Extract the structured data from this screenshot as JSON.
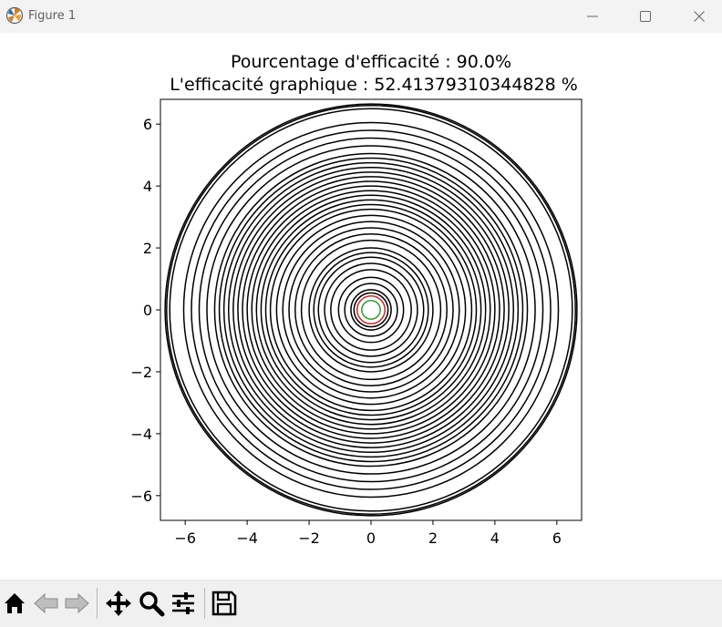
{
  "window": {
    "title": "Figure 1",
    "icon": "matplotlib-figure-icon",
    "controls": [
      "minimize-icon",
      "maximize-icon",
      "close-icon"
    ]
  },
  "chart_data": {
    "type": "line",
    "title": "Pourcentage d'efficacité : 90.0%",
    "subtitle": "L'efficacité graphique : 52.41379310344828 %",
    "xlim": [
      -6.8,
      6.8
    ],
    "ylim": [
      -6.8,
      6.8
    ],
    "xticks": [
      -6,
      -4,
      -2,
      0,
      2,
      4,
      6
    ],
    "yticks": [
      -6,
      -4,
      -2,
      0,
      2,
      4,
      6
    ],
    "grid": false,
    "legend": "none",
    "series": [
      {
        "kind": "concentric-circles",
        "center": [
          0,
          0
        ],
        "color": "#000000",
        "radii": [
          0.55,
          0.65,
          0.85,
          1.05,
          1.3,
          1.5,
          1.7,
          1.85,
          2.0,
          2.25,
          2.45,
          2.65,
          2.85,
          3.05,
          3.25,
          3.4,
          3.55,
          3.7,
          3.85,
          4.0,
          4.15,
          4.3,
          4.45,
          4.6,
          4.75,
          4.9,
          5.05,
          5.3,
          5.55,
          5.8,
          6.05,
          6.5,
          6.6,
          6.65
        ]
      },
      {
        "kind": "circle",
        "center": [
          0,
          0
        ],
        "color": "#d62728",
        "radii": [
          0.45
        ]
      },
      {
        "kind": "circle",
        "center": [
          0,
          0
        ],
        "color": "#2ca02c",
        "radii": [
          0.3
        ]
      }
    ]
  },
  "toolbar": {
    "buttons": [
      {
        "name": "home-button",
        "icon": "home-icon"
      },
      {
        "name": "back-button",
        "icon": "back-arrow-icon"
      },
      {
        "name": "forward-button",
        "icon": "forward-arrow-icon"
      },
      {
        "name": "pan-button",
        "icon": "move-icon"
      },
      {
        "name": "zoom-button",
        "icon": "zoom-icon"
      },
      {
        "name": "configure-subplots-button",
        "icon": "sliders-icon"
      },
      {
        "name": "save-button",
        "icon": "save-icon"
      }
    ]
  }
}
